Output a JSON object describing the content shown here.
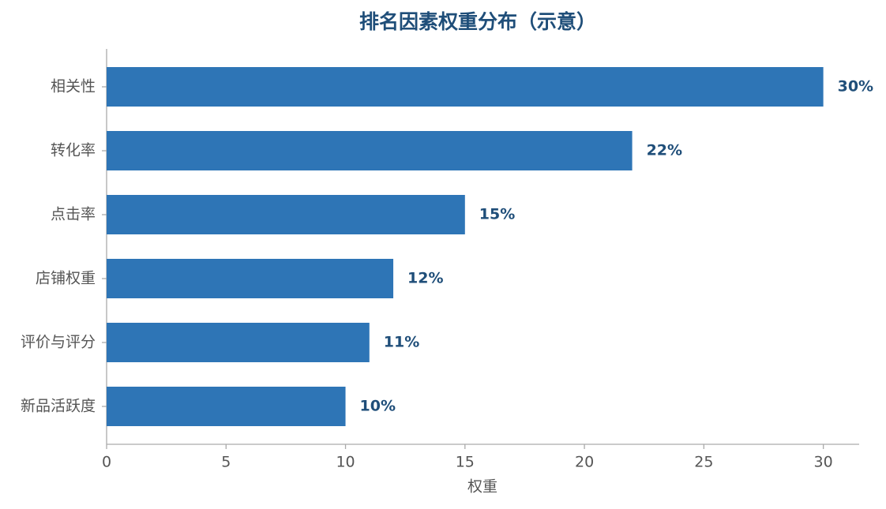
{
  "chart_data": {
    "type": "barh",
    "title": "排名因素权重分布（示意）",
    "categories": [
      "相关性",
      "转化率",
      "点击率",
      "店铺权重",
      "评价与评分",
      "新品活跃度"
    ],
    "values": [
      30,
      22,
      15,
      12,
      11,
      10
    ],
    "value_labels": [
      "30%",
      "22%",
      "15%",
      "12%",
      "11%",
      "10%"
    ],
    "color": "#2e75b6",
    "xlabel": "权重",
    "xlim": [
      0,
      31.5
    ],
    "xticks": [
      0,
      5,
      10,
      15,
      20,
      25,
      30
    ],
    "grid": false
  }
}
